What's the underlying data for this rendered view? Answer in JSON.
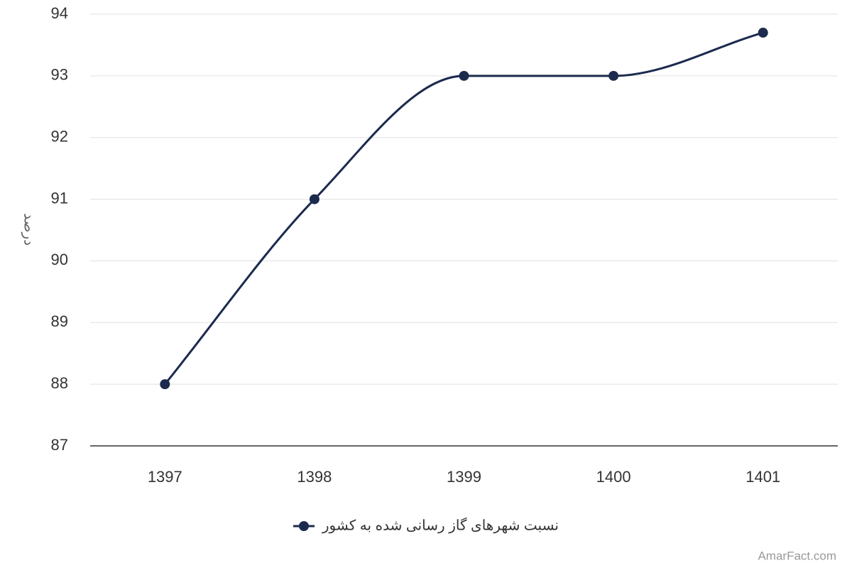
{
  "chart_data": {
    "type": "line",
    "y_label": "درصد",
    "categories": [
      "1397",
      "1398",
      "1399",
      "1400",
      "1401"
    ],
    "series": [
      {
        "name": "نسبت شهرهای گاز رسانی شده به کشور",
        "color": "#1c2a4e",
        "values": [
          88,
          91,
          93,
          93,
          93.7
        ]
      }
    ],
    "ylim": [
      87,
      94
    ],
    "yticks": [
      87,
      88,
      89,
      90,
      91,
      92,
      93,
      94
    ],
    "grid": true,
    "smooth": true,
    "legend": "bottom",
    "credit": "AmarFact.com"
  }
}
